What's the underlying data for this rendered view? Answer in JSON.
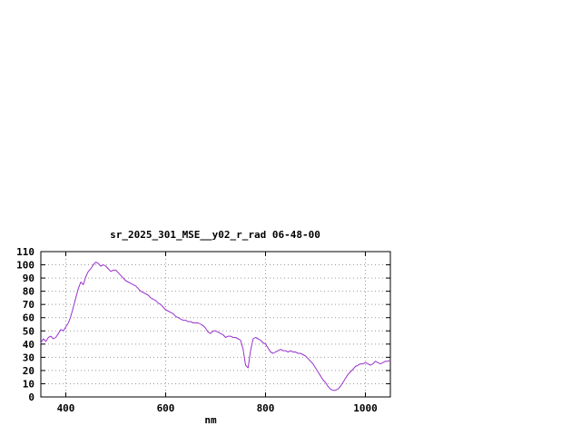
{
  "chart_data": {
    "type": "line",
    "title": "sr_2025_301_MSE__y02_r_rad 06-48-00",
    "xlabel": "nm",
    "ylabel": "",
    "xlim": [
      350,
      1050
    ],
    "ylim": [
      0,
      110
    ],
    "x_ticks": [
      400,
      600,
      800,
      1000
    ],
    "y_ticks": [
      0,
      10,
      20,
      30,
      40,
      50,
      60,
      70,
      80,
      90,
      100,
      110
    ],
    "grid": true,
    "legend": "none",
    "background_color": "#ffffff",
    "axis_color": "#000000",
    "grid_color": "#9a9a9a",
    "line_color": "#9932cc",
    "series": [
      {
        "name": "",
        "x": [
          350,
          355,
          360,
          365,
          370,
          375,
          380,
          385,
          390,
          395,
          400,
          405,
          410,
          415,
          420,
          425,
          430,
          435,
          440,
          445,
          450,
          455,
          460,
          465,
          470,
          475,
          480,
          485,
          490,
          495,
          500,
          505,
          510,
          515,
          520,
          525,
          530,
          535,
          540,
          545,
          550,
          555,
          560,
          565,
          570,
          575,
          580,
          585,
          590,
          595,
          600,
          605,
          610,
          615,
          620,
          625,
          630,
          635,
          640,
          645,
          650,
          655,
          660,
          665,
          670,
          675,
          680,
          685,
          690,
          695,
          700,
          705,
          710,
          715,
          720,
          725,
          730,
          735,
          740,
          745,
          750,
          755,
          760,
          765,
          770,
          775,
          780,
          785,
          790,
          795,
          800,
          805,
          810,
          815,
          820,
          825,
          830,
          835,
          840,
          845,
          850,
          855,
          860,
          865,
          870,
          875,
          880,
          885,
          890,
          895,
          900,
          905,
          910,
          915,
          920,
          925,
          930,
          935,
          940,
          945,
          950,
          955,
          960,
          965,
          970,
          975,
          980,
          985,
          990,
          995,
          1000,
          1005,
          1010,
          1015,
          1020,
          1025,
          1030,
          1035,
          1040,
          1045,
          1050
        ],
        "y": [
          41,
          44,
          42,
          45,
          46,
          44,
          45,
          48,
          51,
          50,
          53,
          56,
          61,
          68,
          75,
          82,
          87,
          85,
          91,
          95,
          97,
          100,
          102,
          101,
          99,
          100,
          99,
          97,
          95,
          96,
          96,
          94,
          92,
          90,
          88,
          87,
          86,
          85,
          84,
          82,
          80,
          79,
          78,
          77,
          75,
          74,
          73,
          71,
          70,
          68,
          66,
          65,
          64,
          63,
          61,
          60,
          59,
          58,
          58,
          57,
          57,
          56,
          56,
          56,
          55,
          54,
          52,
          49,
          48,
          50,
          50,
          49,
          48,
          47,
          45,
          46,
          46,
          45,
          45,
          44,
          43,
          36,
          24,
          22,
          35,
          44,
          45,
          44,
          43,
          41,
          40,
          37,
          34,
          33,
          34,
          35,
          36,
          35,
          35,
          34,
          35,
          34,
          34,
          33,
          33,
          32,
          31,
          29,
          27,
          25,
          22,
          19,
          16,
          13,
          11,
          8,
          6,
          5,
          5,
          6,
          8,
          11,
          14,
          17,
          19,
          21,
          23,
          24,
          25,
          25,
          26,
          25,
          24,
          25,
          27,
          26,
          25,
          26,
          27,
          27,
          28
        ]
      }
    ]
  }
}
